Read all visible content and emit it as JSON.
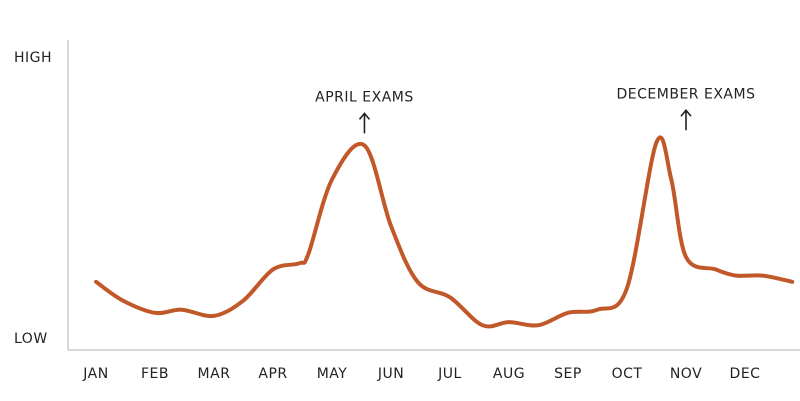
{
  "chart_data": {
    "type": "line",
    "title": "",
    "xlabel": "",
    "ylabel": "",
    "categories": [
      "JAN",
      "FEB",
      "MAR",
      "APR",
      "MAY",
      "JUN",
      "JUL",
      "AUG",
      "SEP",
      "OCT",
      "NOV",
      "DEC"
    ],
    "y_tick_labels": {
      "high": "HIGH",
      "low": "LOW"
    },
    "ylim": [
      0,
      100
    ],
    "grid": false,
    "legend": "none",
    "line_color": "#c0582a",
    "series": [
      {
        "name": "",
        "x": [
          0,
          0.45,
          1.0,
          1.45,
          2.0,
          2.5,
          3.0,
          3.45,
          3.6,
          4.0,
          4.55,
          5.0,
          5.45,
          6.0,
          6.55,
          7.0,
          7.5,
          8.0,
          8.5,
          9.0,
          9.5,
          9.75,
          10.0,
          10.5,
          10.85,
          11.3,
          11.8
        ],
        "y": [
          22,
          16,
          12,
          13,
          11,
          16,
          26,
          28,
          31,
          55,
          66,
          40,
          22,
          17,
          8,
          9,
          8,
          12,
          13,
          20,
          67,
          55,
          30,
          26,
          24,
          24,
          22
        ]
      }
    ],
    "annotations": [
      {
        "text": "APRIL EXAMS",
        "x": 4.55,
        "y": 66
      },
      {
        "text": "DECEMBER EXAMS",
        "x": 10.0,
        "y": 67
      }
    ]
  }
}
